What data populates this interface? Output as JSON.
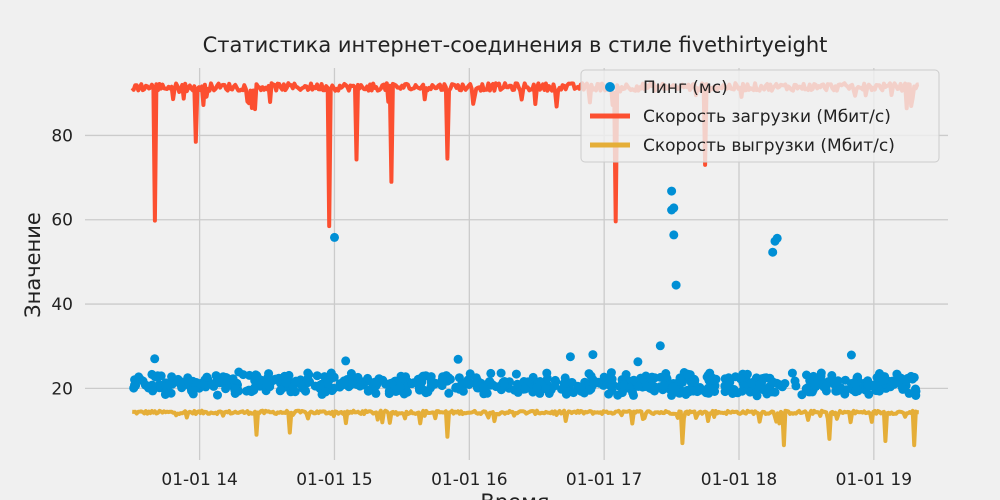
{
  "chart_data": {
    "type": "line+scatter",
    "title": "Статистика интернет-соединения в стиле fivethirtyeight",
    "xlabel": "Время",
    "ylabel": "Значение",
    "x_range": [
      "2024-01-01 13:30",
      "2024-01-01 19:20"
    ],
    "ylim": [
      3,
      96
    ],
    "x_ticks": [
      "01-01 14",
      "01-01 15",
      "01-01 16",
      "01-01 17",
      "01-01 18",
      "01-01 19"
    ],
    "x_tick_hours": [
      14,
      15,
      16,
      17,
      18,
      19
    ],
    "y_ticks": [
      20,
      40,
      60,
      80
    ],
    "grid": true,
    "legend_position": "top-right",
    "series": [
      {
        "name": "Пинг (мс)",
        "kind": "scatter",
        "color": "#008fd5",
        "baseline": 21,
        "spread": 3,
        "outliers": [
          {
            "t": "13:40",
            "v": 27
          },
          {
            "t": "15:00",
            "v": 55.8
          },
          {
            "t": "15:05",
            "v": 26.5
          },
          {
            "t": "15:55",
            "v": 26.9
          },
          {
            "t": "16:45",
            "v": 27.5
          },
          {
            "t": "16:55",
            "v": 28
          },
          {
            "t": "17:15",
            "v": 26.3
          },
          {
            "t": "17:25",
            "v": 30.1
          },
          {
            "t": "17:30",
            "v": 66.8
          },
          {
            "t": "17:30",
            "v": 62.3
          },
          {
            "t": "17:31",
            "v": 62.8
          },
          {
            "t": "17:31",
            "v": 56.4
          },
          {
            "t": "17:32",
            "v": 44.5
          },
          {
            "t": "18:15",
            "v": 52.3
          },
          {
            "t": "18:16",
            "v": 54.9
          },
          {
            "t": "18:17",
            "v": 55.6
          },
          {
            "t": "18:50",
            "v": 27.9
          }
        ]
      },
      {
        "name": "Скорость загрузки (Мбит/с)",
        "kind": "line",
        "color": "#fc4f30",
        "baseline": 91.5,
        "dips": [
          {
            "t": "13:40",
            "v": 59.8
          },
          {
            "t": "13:58",
            "v": 78.5
          },
          {
            "t": "14:58",
            "v": 58.5
          },
          {
            "t": "15:10",
            "v": 74.3
          },
          {
            "t": "15:25",
            "v": 69
          },
          {
            "t": "15:50",
            "v": 74.5
          },
          {
            "t": "17:05",
            "v": 59.6
          },
          {
            "t": "17:45",
            "v": 73
          }
        ]
      },
      {
        "name": "Скорость выгрузки (Мбит/с)",
        "kind": "line",
        "color": "#e5ae38",
        "baseline": 14.3,
        "dips": [
          {
            "t": "14:25",
            "v": 9
          },
          {
            "t": "14:40",
            "v": 9.5
          },
          {
            "t": "15:50",
            "v": 8.5
          },
          {
            "t": "17:35",
            "v": 7
          },
          {
            "t": "18:20",
            "v": 6.5
          },
          {
            "t": "18:40",
            "v": 8
          },
          {
            "t": "19:05",
            "v": 7.5
          },
          {
            "t": "19:18",
            "v": 6.5
          }
        ]
      }
    ]
  }
}
